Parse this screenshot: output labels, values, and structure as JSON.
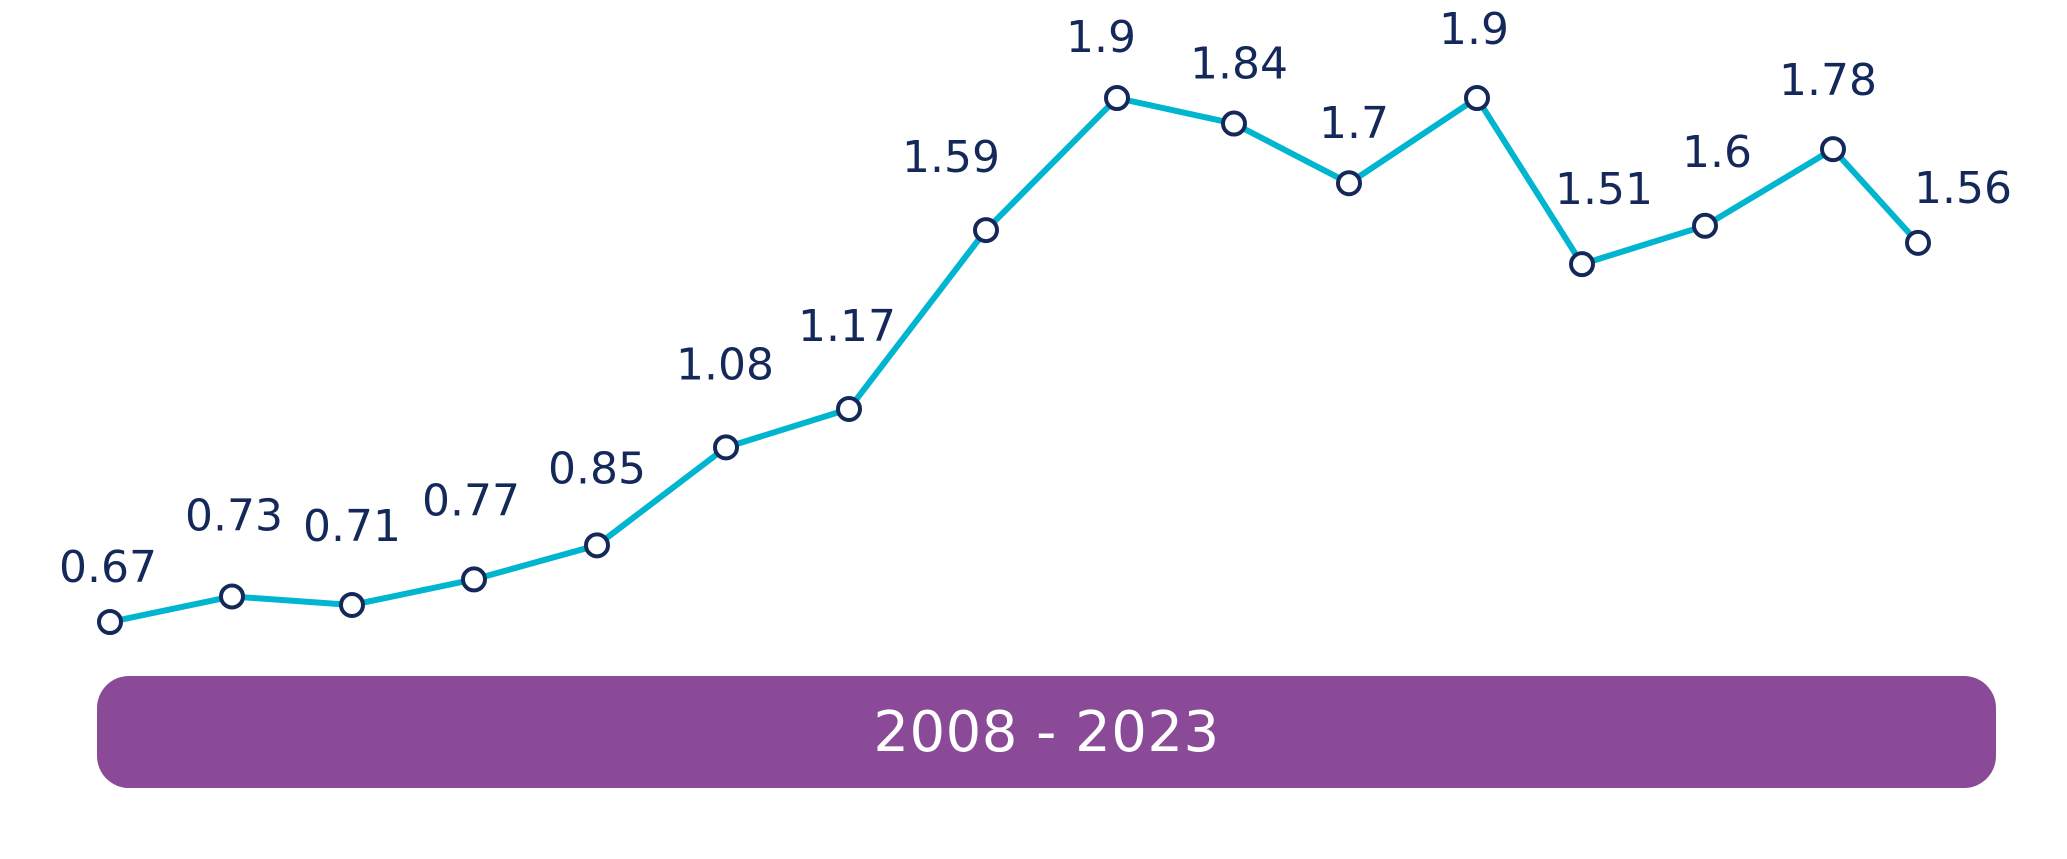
{
  "chart_data": {
    "type": "line",
    "title": "",
    "xlabel": "",
    "ylabel": "",
    "x": [
      1,
      2,
      3,
      4,
      5,
      6,
      7,
      8,
      9,
      10,
      11,
      12,
      13,
      14,
      15,
      16
    ],
    "values": [
      0.67,
      0.73,
      0.71,
      0.77,
      0.85,
      1.08,
      1.17,
      1.59,
      1.9,
      1.84,
      1.7,
      1.9,
      1.51,
      1.6,
      1.78,
      1.56
    ],
    "value_labels": [
      "0.67",
      "0.73",
      "0.71",
      "0.77",
      "0.85",
      "1.08",
      "1.17",
      "1.59",
      "1.9",
      "1.84",
      "1.7",
      "1.9",
      "1.51",
      "1.6",
      "1.78",
      "1.56"
    ],
    "grid": false,
    "axes_visible": false,
    "band_label": "2008 - 2023"
  },
  "colors": {
    "line": "#00b5cf",
    "marker_stroke": "#14295a",
    "marker_fill": "#ffffff",
    "label": "#14295a",
    "band": "#8b4a98",
    "band_text": "#ffffff"
  }
}
